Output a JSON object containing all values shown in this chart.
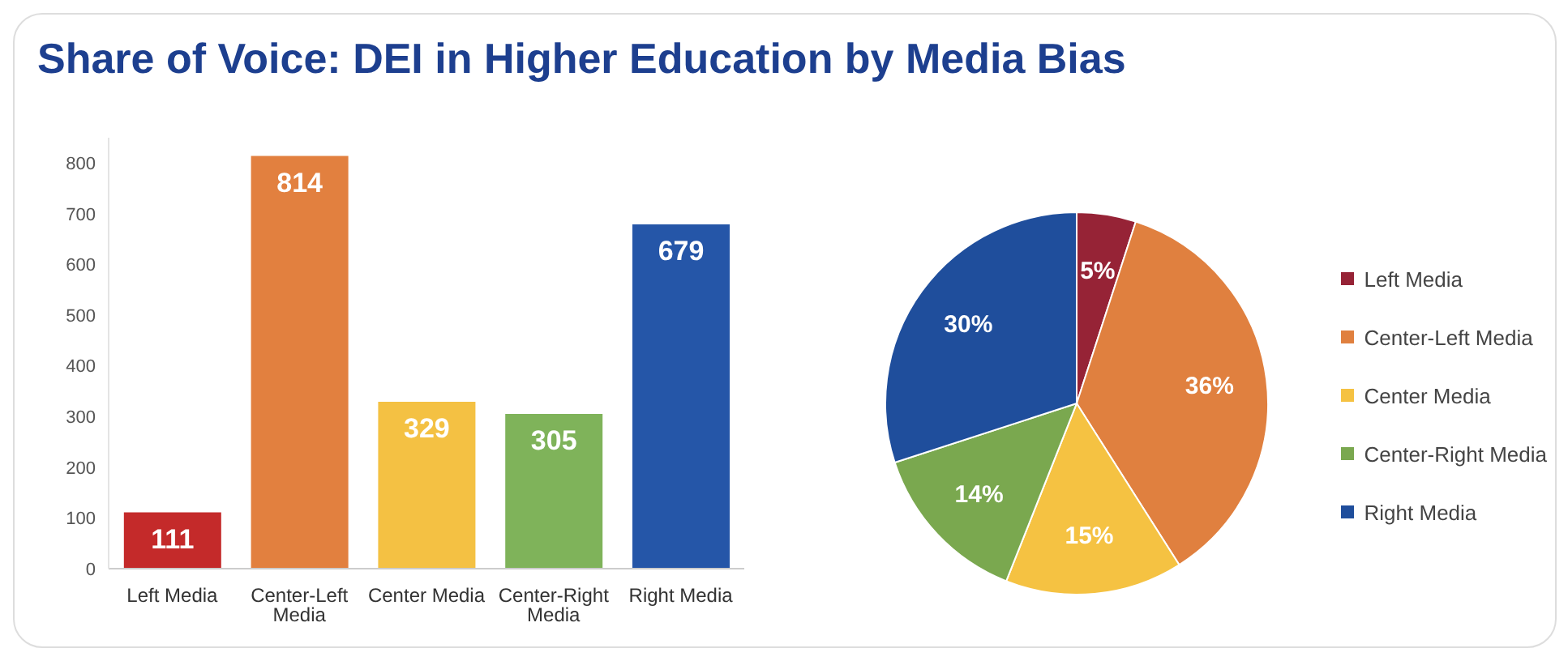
{
  "chart_data": [
    {
      "type": "bar",
      "title": "Share of Voice: DEI in Higher Education by Media Bias",
      "categories": [
        "Left Media",
        "Center-Left Media",
        "Center Media",
        "Center-Right Media",
        "Right Media"
      ],
      "values": [
        111,
        814,
        329,
        305,
        679
      ],
      "colors": [
        "#c42a2a",
        "#e2803f",
        "#f4c143",
        "#7fb35a",
        "#2556a8"
      ],
      "ylim": [
        0,
        850
      ],
      "yticks": [
        0,
        100,
        200,
        300,
        400,
        500,
        600,
        700,
        800
      ],
      "data_labels": true,
      "grid": false
    },
    {
      "type": "pie",
      "categories": [
        "Left Media",
        "Center-Left Media",
        "Center Media",
        "Center-Right Media",
        "Right Media"
      ],
      "values": [
        5,
        36,
        15,
        14,
        30
      ],
      "value_labels": [
        "5%",
        "36%",
        "15%",
        "14%",
        "30%"
      ],
      "colors": [
        "#962336",
        "#e0803f",
        "#f5c242",
        "#7aa84f",
        "#1f4e9c"
      ],
      "legend": "right"
    }
  ]
}
